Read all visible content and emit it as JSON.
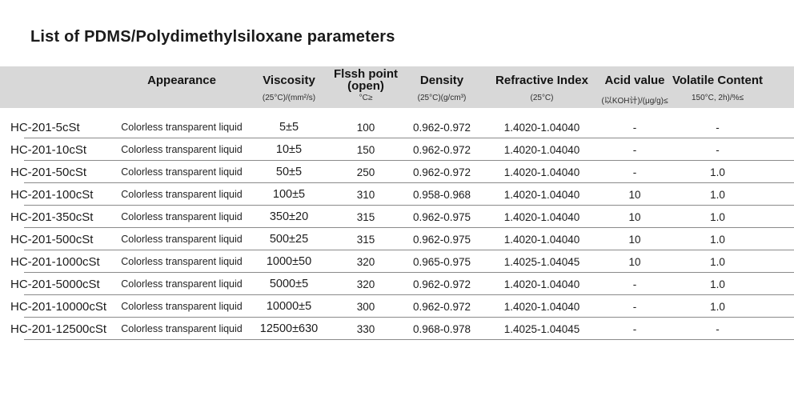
{
  "page": {
    "title": "List of PDMS/Polydimethylsiloxane parameters"
  },
  "table": {
    "headers": [
      {
        "label": "",
        "sub": ""
      },
      {
        "label": "Appearance",
        "sub": ""
      },
      {
        "label": "Viscosity",
        "sub": "(25°C)/(mm²/s)"
      },
      {
        "label": "Flssh point",
        "label2": "(open)",
        "sub": "°C≥"
      },
      {
        "label": "Density",
        "sub": "(25°C)(g/cm³)"
      },
      {
        "label": "Refractive Index",
        "sub": "(25°C)"
      },
      {
        "label": "Acid value",
        "sub": "(以KOH计)/(μg/g)≤"
      },
      {
        "label": "Volatile Content",
        "sub": "150°C, 2h)/%≤"
      }
    ],
    "rows": [
      [
        "HC-201-5cSt",
        "Colorless transparent liquid",
        "5±5",
        "100",
        "0.962-0.972",
        "1.4020-1.04040",
        "-",
        "-"
      ],
      [
        "HC-201-10cSt",
        "Colorless transparent liquid",
        "10±5",
        "150",
        "0.962-0.972",
        "1.4020-1.04040",
        "-",
        "-"
      ],
      [
        "HC-201-50cSt",
        "Colorless transparent liquid",
        "50±5",
        "250",
        "0.962-0.972",
        "1.4020-1.04040",
        "-",
        "1.0"
      ],
      [
        "HC-201-100cSt",
        "Colorless transparent liquid",
        "100±5",
        "310",
        "0.958-0.968",
        "1.4020-1.04040",
        "10",
        "1.0"
      ],
      [
        "HC-201-350cSt",
        "Colorless transparent liquid",
        "350±20",
        "315",
        "0.962-0.975",
        "1.4020-1.04040",
        "10",
        "1.0"
      ],
      [
        "HC-201-500cSt",
        "Colorless transparent liquid",
        "500±25",
        "315",
        "0.962-0.975",
        "1.4020-1.04040",
        "10",
        "1.0"
      ],
      [
        "HC-201-1000cSt",
        "Colorless transparent liquid",
        "1000±50",
        "320",
        "0.965-0.975",
        "1.4025-1.04045",
        "10",
        "1.0"
      ],
      [
        "HC-201-5000cSt",
        "Colorless transparent liquid",
        "5000±5",
        "320",
        "0.962-0.972",
        "1.4020-1.04040",
        "-",
        "1.0"
      ],
      [
        "HC-201-10000cSt",
        "Colorless transparent liquid",
        "10000±5",
        "300",
        "0.962-0.972",
        "1.4020-1.04040",
        "-",
        "1.0"
      ],
      [
        "HC-201-12500cSt",
        "Colorless transparent liquid",
        "12500±630",
        "330",
        "0.968-0.978",
        "1.4025-1.04045",
        "-",
        "-"
      ]
    ],
    "colors": {
      "header_band": "#d8d8d8",
      "row_line": "#8a8a8a",
      "text": "#1f1f1f"
    }
  }
}
